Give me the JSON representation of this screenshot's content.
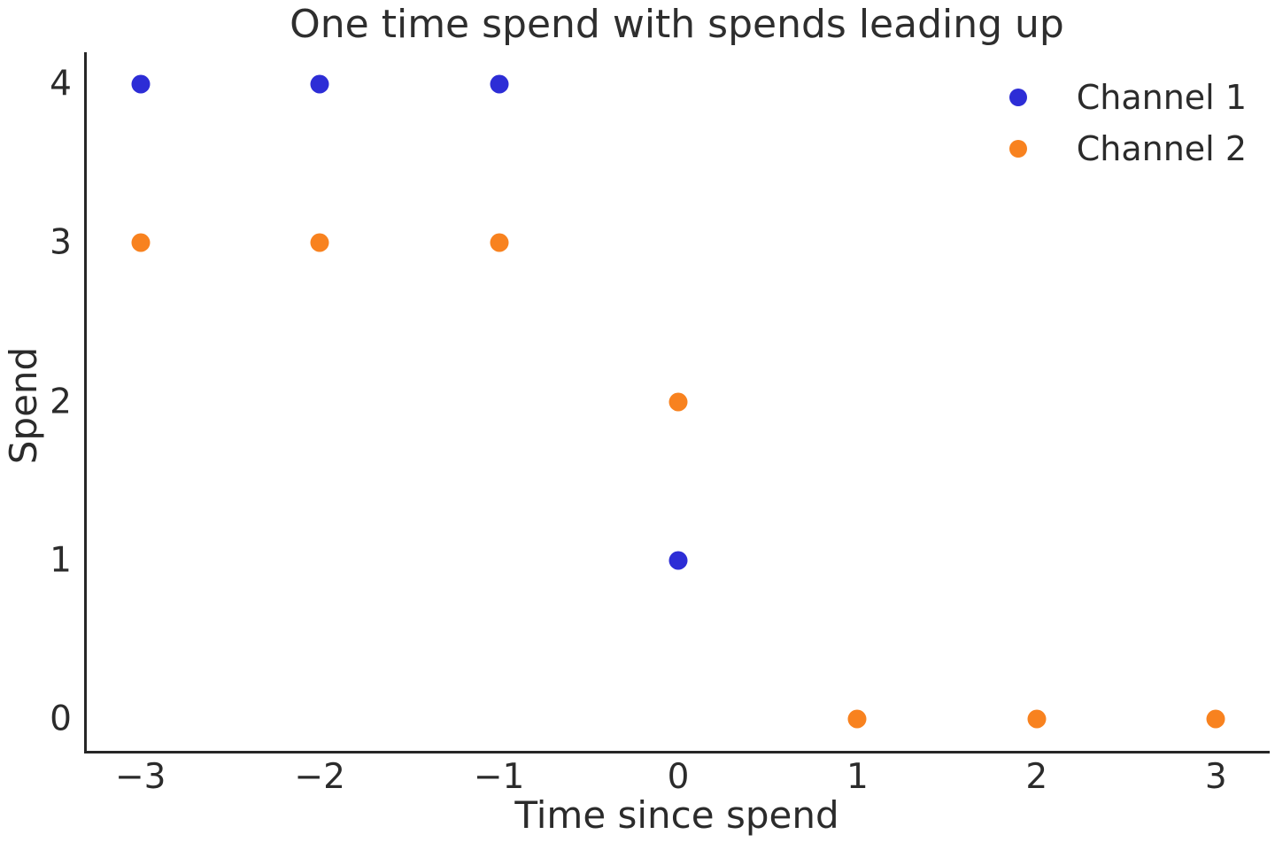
{
  "figure": {
    "background": "#ffffff",
    "text_color": "#2b2b2b",
    "spine_color": "#262626"
  },
  "chart_data": {
    "type": "scatter",
    "title": "One time spend with spends leading up",
    "xlabel": "Time since spend",
    "ylabel": "Spend",
    "xlim": [
      -3.3,
      3.3
    ],
    "ylim": [
      -0.2,
      4.2
    ],
    "x_ticks": [
      -3,
      -2,
      -1,
      0,
      1,
      2,
      3
    ],
    "x_tick_labels": [
      "−3",
      "−2",
      "−1",
      "0",
      "1",
      "2",
      "3"
    ],
    "y_ticks": [
      0,
      1,
      2,
      3,
      4
    ],
    "y_tick_labels": [
      "0",
      "1",
      "2",
      "3",
      "4"
    ],
    "grid": false,
    "legend_position": "upper right",
    "marker_diameter_px": 21,
    "series": [
      {
        "name": "Channel 1",
        "color": "#2d2dd6",
        "points": [
          [
            -3,
            4
          ],
          [
            -2,
            4
          ],
          [
            -1,
            4
          ],
          [
            0,
            1
          ]
        ]
      },
      {
        "name": "Channel 2",
        "color": "#f8821f",
        "points": [
          [
            -3,
            3
          ],
          [
            -2,
            3
          ],
          [
            -1,
            3
          ],
          [
            0,
            2
          ],
          [
            1,
            0
          ],
          [
            2,
            0
          ],
          [
            3,
            0
          ]
        ]
      }
    ]
  }
}
